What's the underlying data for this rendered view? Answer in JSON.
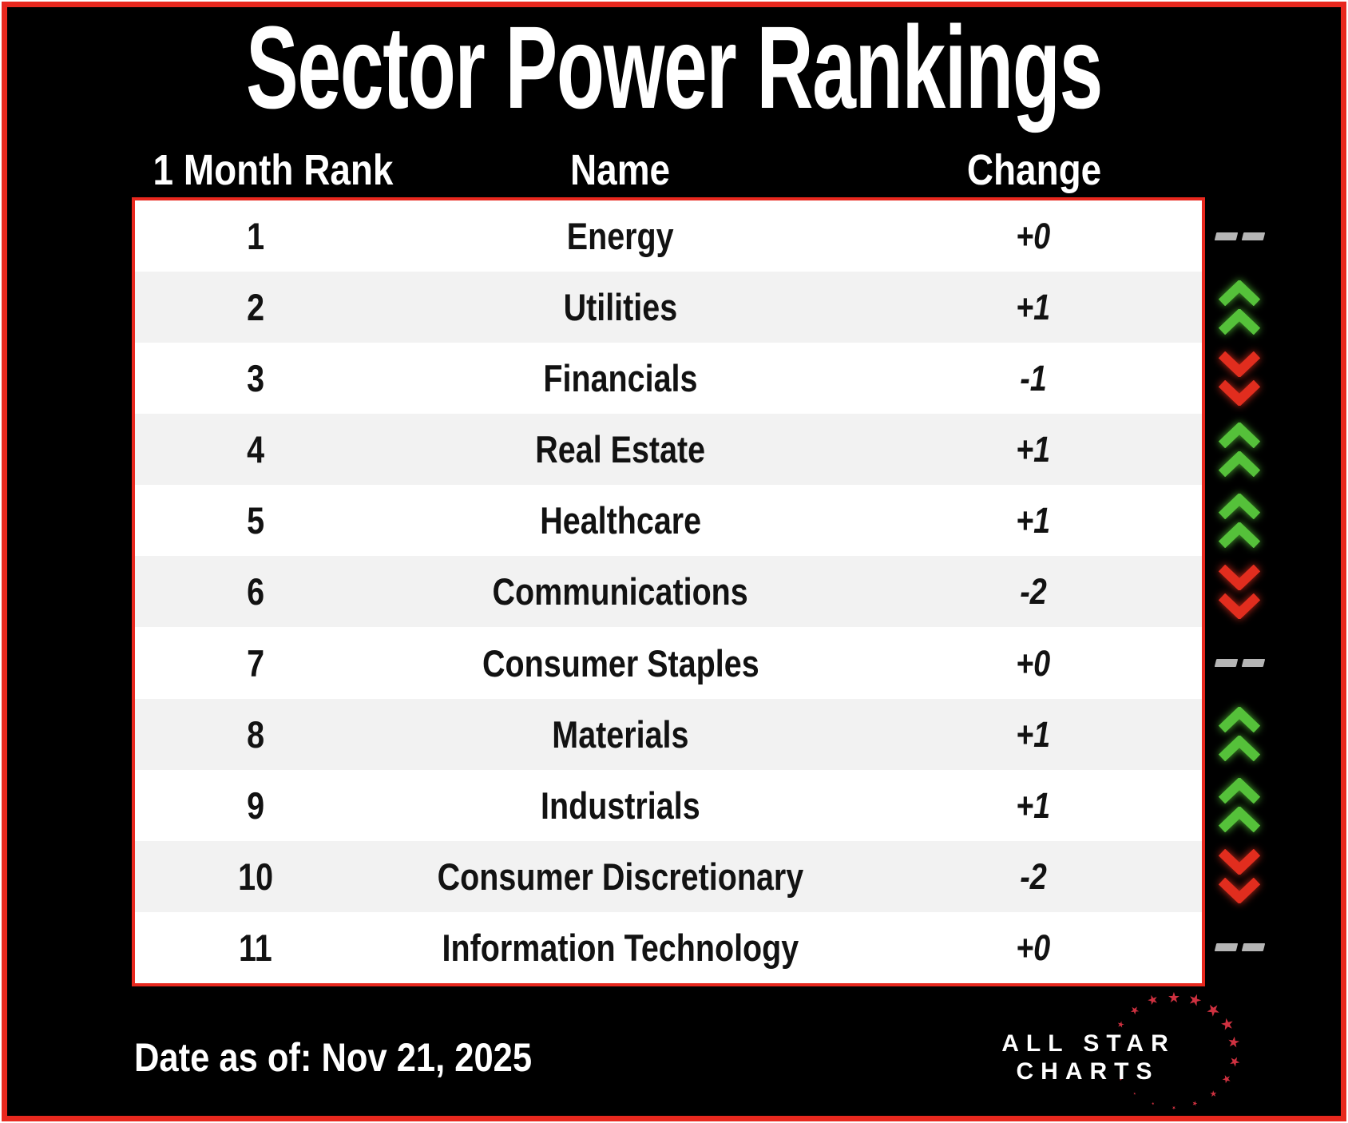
{
  "title": "Sector Power Rankings",
  "table": {
    "headers": {
      "rank": "1 Month Rank",
      "name": "Name",
      "change": "Change"
    },
    "rows": [
      {
        "rank": "1",
        "name": "Energy",
        "change": "+0",
        "direction": "flat"
      },
      {
        "rank": "2",
        "name": "Utilities",
        "change": "+1",
        "direction": "up"
      },
      {
        "rank": "3",
        "name": "Financials",
        "change": "-1",
        "direction": "down"
      },
      {
        "rank": "4",
        "name": "Real Estate",
        "change": "+1",
        "direction": "up"
      },
      {
        "rank": "5",
        "name": "Healthcare",
        "change": "+1",
        "direction": "up"
      },
      {
        "rank": "6",
        "name": "Communications",
        "change": "-2",
        "direction": "down"
      },
      {
        "rank": "7",
        "name": "Consumer Staples",
        "change": "+0",
        "direction": "flat"
      },
      {
        "rank": "8",
        "name": "Materials",
        "change": "+1",
        "direction": "up"
      },
      {
        "rank": "9",
        "name": "Industrials",
        "change": "+1",
        "direction": "up"
      },
      {
        "rank": "10",
        "name": "Consumer Discretionary",
        "change": "-2",
        "direction": "down"
      },
      {
        "rank": "11",
        "name": "Information Technology",
        "change": "+0",
        "direction": "flat"
      }
    ]
  },
  "footer": {
    "date_text": "Date as of: Nov 21, 2025"
  },
  "logo": {
    "line1": "ALL STAR",
    "line2": "CHARTS"
  },
  "colors": {
    "up_green": "#55c13a",
    "down_red": "#e12d1e",
    "flat_gray": "#b5b5b5",
    "frame_red": "#e8281e",
    "row_alt_gray": "#f2f2f2",
    "star_red": "#cf3140",
    "background": "#000000"
  },
  "chart_data": {
    "type": "table",
    "title": "Sector Power Rankings",
    "columns": [
      "1 Month Rank",
      "Name",
      "Change"
    ],
    "rows": [
      [
        1,
        "Energy",
        "+0"
      ],
      [
        2,
        "Utilities",
        "+1"
      ],
      [
        3,
        "Financials",
        "-1"
      ],
      [
        4,
        "Real Estate",
        "+1"
      ],
      [
        5,
        "Healthcare",
        "+1"
      ],
      [
        6,
        "Communications",
        "-2"
      ],
      [
        7,
        "Consumer Staples",
        "+0"
      ],
      [
        8,
        "Materials",
        "+1"
      ],
      [
        9,
        "Industrials",
        "+1"
      ],
      [
        10,
        "Consumer Discretionary",
        "-2"
      ],
      [
        11,
        "Information Technology",
        "+0"
      ]
    ],
    "date_as_of": "Nov 21, 2025",
    "legend": "green double chevron up = rank improved, red double chevron down = rank declined, gray dashes = unchanged"
  }
}
